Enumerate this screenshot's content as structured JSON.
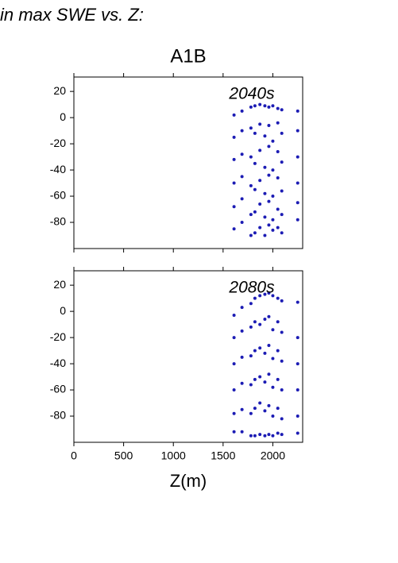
{
  "header": {
    "title": "in max SWE vs. Z:"
  },
  "chart_data": [
    {
      "type": "scatter",
      "title": "A1B",
      "annotation": "2040s",
      "color": "#1c1cb4",
      "xlim": [
        0,
        2300
      ],
      "ylim": [
        -100,
        31
      ],
      "xticks": [
        0,
        500,
        1000,
        1500,
        2000
      ],
      "yticks": [
        -80,
        -60,
        -40,
        -20,
        0,
        20
      ],
      "x": [
        1610,
        1610,
        1610,
        1610,
        1610,
        1610,
        1690,
        1690,
        1690,
        1690,
        1690,
        1690,
        1780,
        1780,
        1780,
        1780,
        1780,
        1780,
        1820,
        1820,
        1820,
        1820,
        1820,
        1820,
        1870,
        1870,
        1870,
        1870,
        1870,
        1870,
        1920,
        1920,
        1920,
        1920,
        1920,
        1920,
        1960,
        1960,
        1960,
        1960,
        1960,
        1960,
        2000,
        2000,
        2000,
        2000,
        2000,
        2000,
        2050,
        2050,
        2050,
        2050,
        2050,
        2050,
        2090,
        2090,
        2090,
        2090,
        2090,
        2090,
        2250,
        2250,
        2250,
        2250,
        2250,
        2250
      ],
      "values": [
        2,
        -15,
        -32,
        -50,
        -68,
        -85,
        5,
        -10,
        -28,
        -45,
        -62,
        -80,
        8,
        -8,
        -30,
        -52,
        -74,
        -90,
        9,
        -12,
        -35,
        -55,
        -72,
        -88,
        10,
        -5,
        -25,
        -48,
        -66,
        -84,
        9,
        -14,
        -38,
        -58,
        -76,
        -90,
        8,
        -6,
        -22,
        -44,
        -64,
        -82,
        9,
        -18,
        -40,
        -60,
        -78,
        -86,
        7,
        -4,
        -26,
        -46,
        -70,
        -84,
        6,
        -12,
        -34,
        -56,
        -74,
        -88,
        5,
        -10,
        -30,
        -50,
        -65,
        -78
      ]
    },
    {
      "type": "scatter",
      "annotation": "2080s",
      "xlabel": "Z(m)",
      "color": "#1c1cb4",
      "xlim": [
        0,
        2300
      ],
      "ylim": [
        -100,
        31
      ],
      "xticks": [
        0,
        500,
        1000,
        1500,
        2000
      ],
      "yticks": [
        -80,
        -60,
        -40,
        -20,
        0,
        20
      ],
      "x": [
        1610,
        1610,
        1610,
        1610,
        1610,
        1610,
        1690,
        1690,
        1690,
        1690,
        1690,
        1690,
        1780,
        1780,
        1780,
        1780,
        1780,
        1780,
        1820,
        1820,
        1820,
        1820,
        1820,
        1820,
        1870,
        1870,
        1870,
        1870,
        1870,
        1870,
        1920,
        1920,
        1920,
        1920,
        1920,
        1920,
        1960,
        1960,
        1960,
        1960,
        1960,
        1960,
        2000,
        2000,
        2000,
        2000,
        2000,
        2000,
        2050,
        2050,
        2050,
        2050,
        2050,
        2050,
        2090,
        2090,
        2090,
        2090,
        2090,
        2090,
        2250,
        2250,
        2250,
        2250,
        2250,
        2250
      ],
      "values": [
        -3,
        -20,
        -40,
        -60,
        -78,
        -92,
        3,
        -15,
        -35,
        -55,
        -75,
        -92,
        6,
        -12,
        -34,
        -56,
        -78,
        -95,
        10,
        -8,
        -30,
        -52,
        -74,
        -95,
        12,
        -10,
        -28,
        -50,
        -70,
        -94,
        13,
        -6,
        -32,
        -54,
        -76,
        -95,
        14,
        -4,
        -26,
        -48,
        -72,
        -94,
        12,
        -14,
        -36,
        -58,
        -80,
        -95,
        10,
        -8,
        -30,
        -52,
        -74,
        -93,
        8,
        -16,
        -38,
        -60,
        -82,
        -94,
        7,
        -20,
        -40,
        -60,
        -80,
        -93
      ]
    }
  ]
}
